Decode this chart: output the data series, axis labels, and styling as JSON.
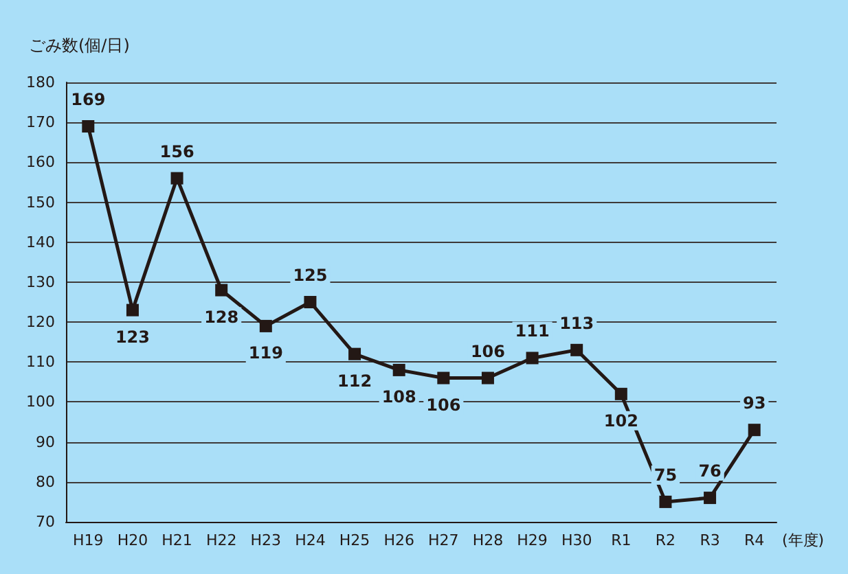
{
  "chart_data": {
    "type": "line",
    "ylabel": "ごみ数(個/日)",
    "xlabel": "(年度)",
    "categories": [
      "H19",
      "H20",
      "H21",
      "H22",
      "H23",
      "H24",
      "H25",
      "H26",
      "H27",
      "H28",
      "H29",
      "H30",
      "R1",
      "R2",
      "R3",
      "R4"
    ],
    "values": [
      169,
      123,
      156,
      128,
      119,
      125,
      112,
      108,
      106,
      106,
      111,
      113,
      102,
      75,
      76,
      93
    ],
    "color": "#231815",
    "ylim": [
      70,
      180
    ],
    "yticks": [
      70,
      80,
      90,
      100,
      110,
      120,
      130,
      140,
      150,
      160,
      170,
      180
    ],
    "grid": "y",
    "marker": "square",
    "line_style": "solid",
    "data_labels": true
  }
}
